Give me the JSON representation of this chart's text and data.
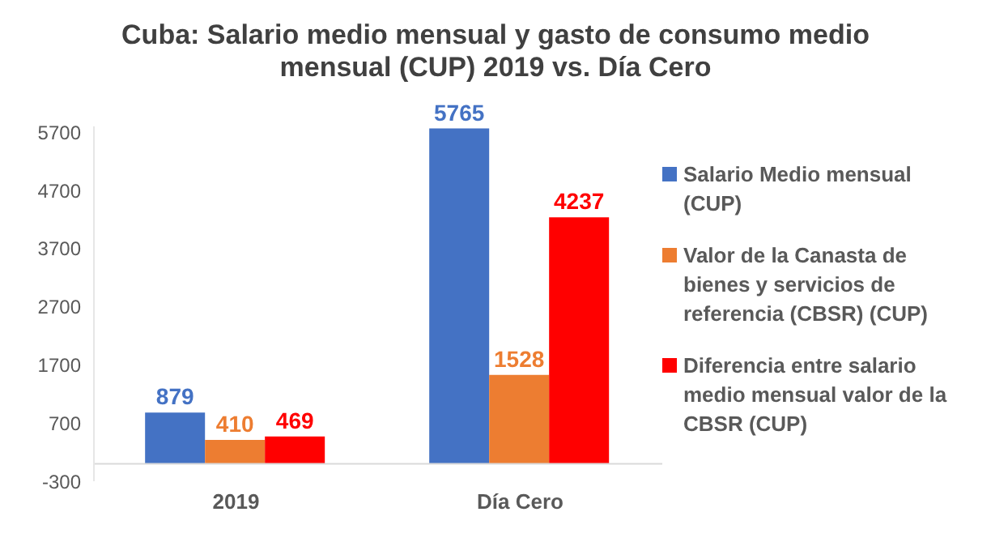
{
  "chart_data": {
    "type": "bar",
    "title": "Cuba: Salario medio mensual y gasto de consumo medio mensual (CUP) 2019 vs. Día Cero",
    "categories": [
      "2019",
      "Día Cero"
    ],
    "series": [
      {
        "name": "Salario Medio mensual (CUP)",
        "color": "#4472c4",
        "values": [
          879,
          5765
        ]
      },
      {
        "name": "Valor de la Canasta de bienes y servicios de referencia (CBSR) (CUP)",
        "color": "#ed7d31",
        "values": [
          410,
          1528
        ]
      },
      {
        "name": "Diferencia entre salario medio mensual valor de la CBSR (CUP)",
        "color": "#ff0000",
        "values": [
          469,
          4237
        ]
      }
    ],
    "ylim": [
      -300,
      5800
    ],
    "yticks": [
      -300,
      700,
      1700,
      2700,
      3700,
      4700,
      5700
    ],
    "data_labels": true,
    "legend": "right",
    "grid": false
  }
}
